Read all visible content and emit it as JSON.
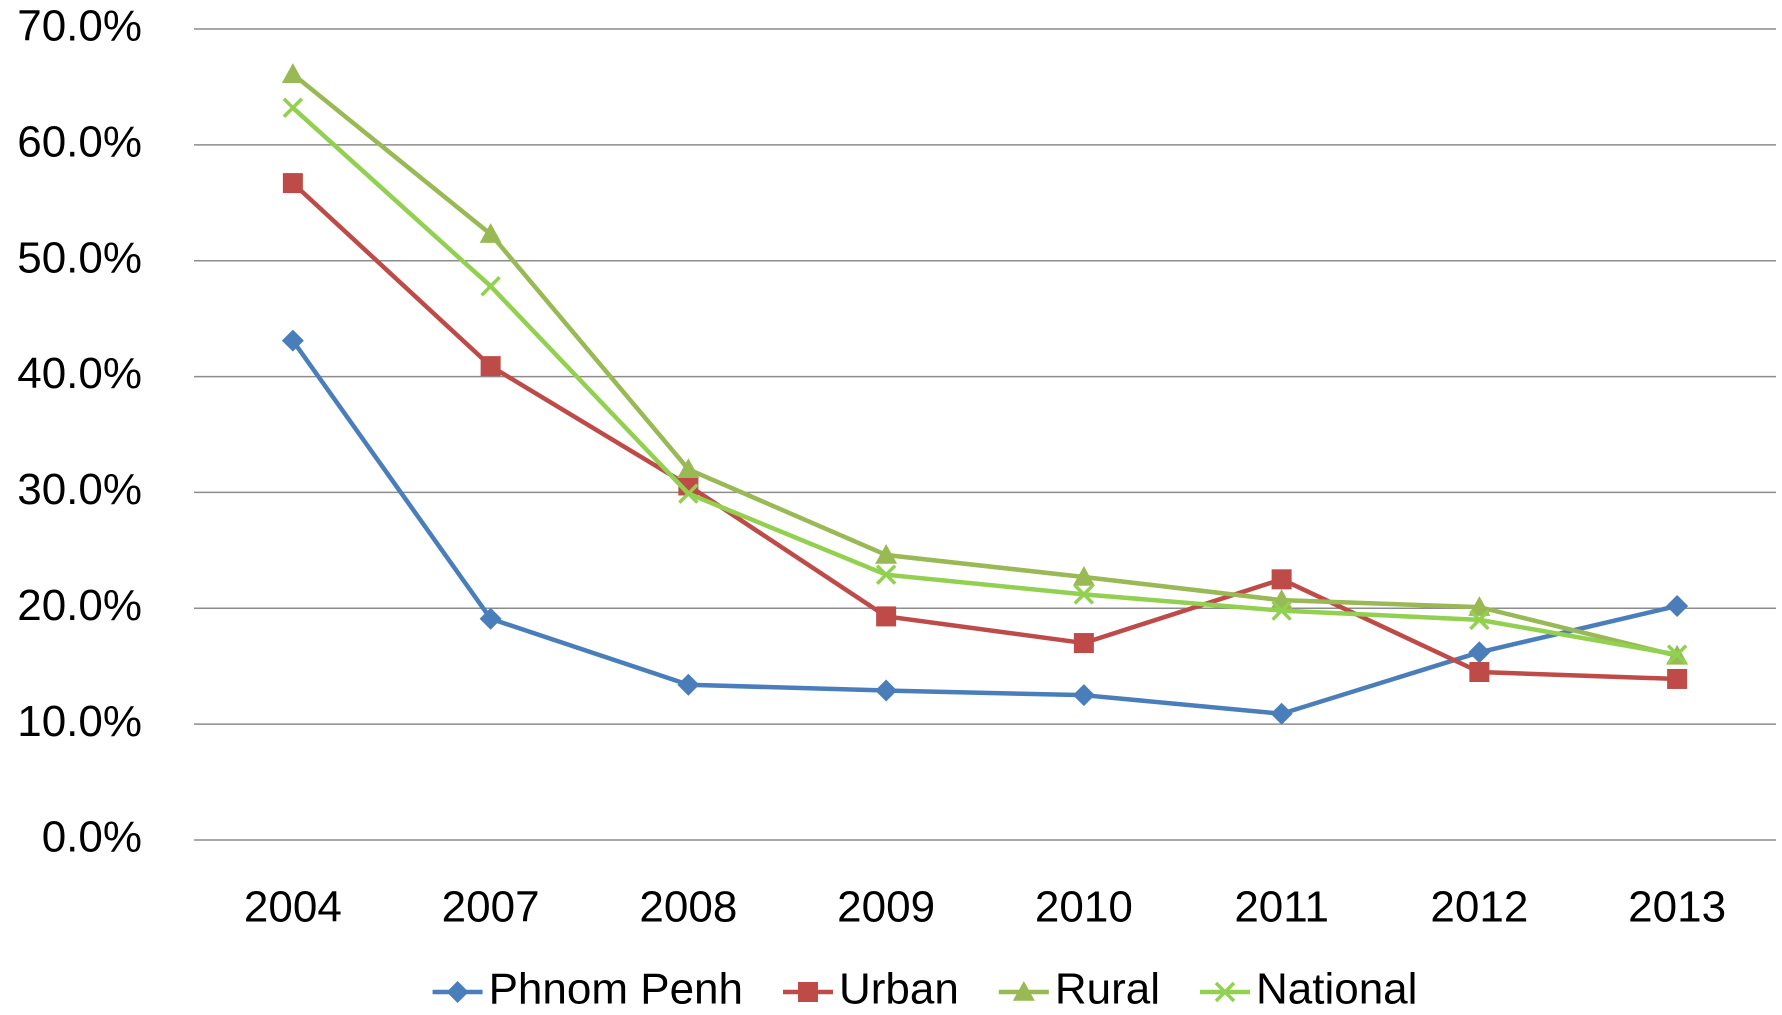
{
  "chart_data": {
    "type": "line",
    "categories": [
      "2004",
      "2007",
      "2008",
      "2009",
      "2010",
      "2011",
      "2012",
      "2013"
    ],
    "series": [
      {
        "name": "Phnom Penh",
        "color": "#4a7ebb",
        "marker": "diamond",
        "values": [
          43.1,
          19.1,
          13.4,
          12.9,
          12.5,
          10.9,
          16.2,
          20.2
        ]
      },
      {
        "name": "Urban",
        "color": "#be4b48",
        "marker": "square",
        "values": [
          56.7,
          40.9,
          30.6,
          19.3,
          17.0,
          22.5,
          14.5,
          13.9
        ]
      },
      {
        "name": "Rural",
        "color": "#98b954",
        "marker": "triangle",
        "values": [
          66.1,
          52.3,
          32.0,
          24.6,
          22.7,
          20.7,
          20.1,
          15.9
        ]
      },
      {
        "name": "National",
        "color": "#92d050",
        "marker": "x",
        "values": [
          63.2,
          47.8,
          29.9,
          22.9,
          21.2,
          19.8,
          19.0,
          16.0
        ]
      }
    ],
    "ylim": [
      0,
      70
    ],
    "yticks": [
      {
        "value": 0,
        "label": "0.0%"
      },
      {
        "value": 10,
        "label": "10.0%"
      },
      {
        "value": 20,
        "label": "20.0%"
      },
      {
        "value": 30,
        "label": "30.0%"
      },
      {
        "value": 40,
        "label": "40.0%"
      },
      {
        "value": 50,
        "label": "50.0%"
      },
      {
        "value": 60,
        "label": "60.0%"
      },
      {
        "value": 70,
        "label": "70.0%"
      }
    ],
    "grid": true,
    "legend": "bottom"
  }
}
